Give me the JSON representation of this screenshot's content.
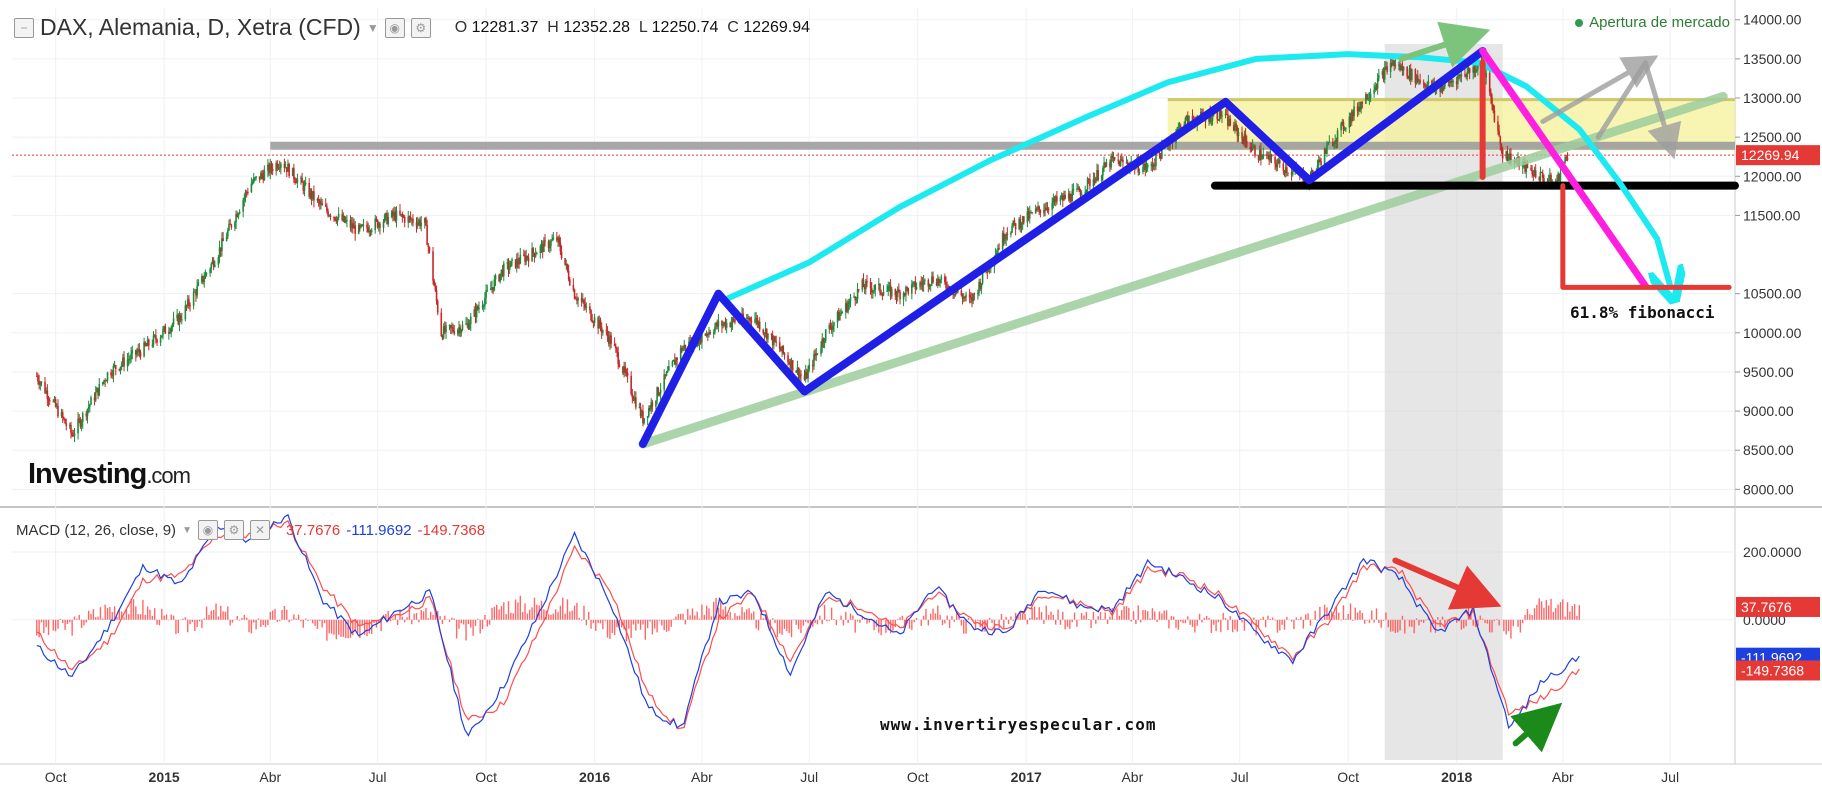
{
  "header": {
    "title": "DAX, Alemania, D, Xetra (CFD)",
    "o_label": "O",
    "o_value": "12281.37",
    "h_label": "H",
    "h_value": "12352.28",
    "l_label": "L",
    "l_value": "12250.74",
    "c_label": "C",
    "c_value": "12269.94",
    "status": "Apertura de mercado"
  },
  "macd_header": {
    "label": "MACD (12, 26, close, 9)",
    "value_hist": "37.7676",
    "value_macd": "-111.9692",
    "value_signal": "-149.7368"
  },
  "branding": {
    "logo_main": "Investing",
    "logo_suffix": ".com",
    "website": "www.invertiryespecular.com"
  },
  "annotation": {
    "fibonacci": "61.8% fibonacci"
  },
  "colors": {
    "macd_line": "#1e3fe0",
    "signal_line": "#ff4d4d",
    "histogram": "#ff4d4d",
    "last_price_badge": "#e53935",
    "blue_zigzag": "#1f1fe6",
    "cyan_arc": "#1de9f0",
    "magenta_line": "#ff1fe0",
    "trend_green": "#9ccc9c",
    "resistance_zone": "#f6f29a",
    "support_black": "#000000",
    "resistance_gray": "#9e9e9e"
  },
  "chart_data": [
    {
      "type": "candlestick",
      "title": "DAX, Alemania, D, Xetra (CFD)",
      "x_ticks": [
        "Oct",
        "2015",
        "Abr",
        "Jul",
        "Oct",
        "2016",
        "Abr",
        "Jul",
        "Oct",
        "2017",
        "Abr",
        "Jul",
        "Oct",
        "2018",
        "Abr",
        "Jul"
      ],
      "y_ticks": [
        "14000.00",
        "13500.00",
        "13000.00",
        "12500.00",
        "12000.00",
        "11500.00",
        "10500.00",
        "10000.00",
        "9500.00",
        "9000.00",
        "8500.00",
        "8000.00"
      ],
      "ylim": [
        7800,
        14150
      ],
      "last_price": "12269.94",
      "series": [
        {
          "x": [
            "2014-09-15",
            "2014-10-15",
            "2014-11-15",
            "2014-12-15",
            "2015-01-15",
            "2015-02-15",
            "2015-03-15",
            "2015-04-10",
            "2015-05-15",
            "2015-06-15",
            "2015-07-15",
            "2015-08-10",
            "2015-08-24",
            "2015-09-15",
            "2015-10-15",
            "2015-11-30",
            "2015-12-15",
            "2016-01-15",
            "2016-02-11",
            "2016-03-15",
            "2016-04-15",
            "2016-05-15",
            "2016-06-27",
            "2016-07-15",
            "2016-08-15",
            "2016-09-15",
            "2016-10-15",
            "2016-11-15",
            "2016-12-15",
            "2017-01-15",
            "2017-02-15",
            "2017-03-15",
            "2017-04-15",
            "2017-05-15",
            "2017-06-15",
            "2017-07-15",
            "2017-08-29",
            "2017-09-15",
            "2017-10-15",
            "2017-11-07",
            "2017-12-15",
            "2018-01-23",
            "2018-02-09",
            "2018-03-01",
            "2018-03-26",
            "2018-04-05"
          ],
          "values": [
            9450,
            8700,
            9500,
            9800,
            10200,
            11000,
            11900,
            12200,
            11600,
            11300,
            11500,
            11400,
            10000,
            10100,
            10800,
            11200,
            10500,
            9900,
            8900,
            9800,
            10100,
            10200,
            9400,
            10000,
            10600,
            10500,
            10700,
            10400,
            11300,
            11600,
            11800,
            12200,
            12100,
            12700,
            12800,
            12300,
            11950,
            12400,
            13000,
            13450,
            13100,
            13450,
            12300,
            12100,
            11900,
            12270
          ]
        }
      ],
      "overlays": {
        "resistance_level": 12390,
        "support_level": 11880,
        "yellow_zone": [
          12330,
          12980
        ],
        "fib_target_level": 10580
      }
    },
    {
      "type": "line",
      "title": "MACD (12, 26, close, 9)",
      "y_ticks": [
        "200.0000",
        "0.0000"
      ],
      "ylim": [
        -420,
        330
      ],
      "series": [
        {
          "name": "MACD",
          "x": [
            "2014-09",
            "2014-10",
            "2014-11",
            "2014-12",
            "2015-01",
            "2015-02",
            "2015-03",
            "2015-04",
            "2015-05",
            "2015-06",
            "2015-07",
            "2015-08",
            "2015-09",
            "2015-10",
            "2015-11",
            "2015-12",
            "2016-01",
            "2016-02",
            "2016-03",
            "2016-04",
            "2016-05",
            "2016-06",
            "2016-07",
            "2016-08",
            "2016-09",
            "2016-10",
            "2016-11",
            "2016-12",
            "2017-01",
            "2017-02",
            "2017-03",
            "2017-04",
            "2017-05",
            "2017-06",
            "2017-07",
            "2017-08",
            "2017-09",
            "2017-10",
            "2017-11",
            "2017-12",
            "2018-01",
            "2018-02",
            "2018-03",
            "2018-04"
          ],
          "values": [
            -80,
            -170,
            -20,
            160,
            100,
            280,
            230,
            310,
            60,
            -50,
            20,
            80,
            -350,
            -200,
            20,
            250,
            50,
            -260,
            -320,
            50,
            80,
            -160,
            80,
            20,
            -50,
            100,
            -20,
            -40,
            100,
            40,
            30,
            170,
            120,
            60,
            -40,
            -120,
            30,
            180,
            120,
            -40,
            30,
            -320,
            -180,
            -112
          ]
        },
        {
          "name": "Signal",
          "x": [
            "2014-09",
            "2014-10",
            "2014-11",
            "2014-12",
            "2015-01",
            "2015-02",
            "2015-03",
            "2015-04",
            "2015-05",
            "2015-06",
            "2015-07",
            "2015-08",
            "2015-09",
            "2015-10",
            "2015-11",
            "2015-12",
            "2016-01",
            "2016-02",
            "2016-03",
            "2016-04",
            "2016-05",
            "2016-06",
            "2016-07",
            "2016-08",
            "2016-09",
            "2016-10",
            "2016-11",
            "2016-12",
            "2017-01",
            "2017-02",
            "2017-03",
            "2017-04",
            "2017-05",
            "2017-06",
            "2017-07",
            "2017-08",
            "2017-09",
            "2017-10",
            "2017-11",
            "2017-12",
            "2018-01",
            "2018-02",
            "2018-03",
            "2018-04"
          ],
          "values": [
            -40,
            -150,
            -60,
            120,
            130,
            250,
            250,
            290,
            100,
            -20,
            10,
            60,
            -300,
            -250,
            -30,
            210,
            90,
            -220,
            -330,
            0,
            80,
            -120,
            60,
            40,
            -30,
            80,
            0,
            -30,
            80,
            50,
            20,
            150,
            130,
            70,
            -20,
            -110,
            0,
            160,
            140,
            -20,
            20,
            -280,
            -230,
            -150
          ]
        },
        {
          "name": "Histogram",
          "x": [
            "2014-09",
            "2014-11",
            "2015-01",
            "2015-03",
            "2015-05",
            "2015-07",
            "2015-09",
            "2015-11",
            "2016-01",
            "2016-03",
            "2016-05",
            "2016-07",
            "2016-09",
            "2016-11",
            "2017-01",
            "2017-03",
            "2017-05",
            "2017-07",
            "2017-09",
            "2017-11",
            "2018-01",
            "2018-03",
            "2018-04"
          ],
          "values": [
            -40,
            40,
            -30,
            -20,
            -40,
            10,
            -50,
            50,
            -40,
            50,
            0,
            20,
            -20,
            -20,
            20,
            10,
            -10,
            -20,
            30,
            -20,
            10,
            50,
            38
          ]
        }
      ]
    }
  ]
}
